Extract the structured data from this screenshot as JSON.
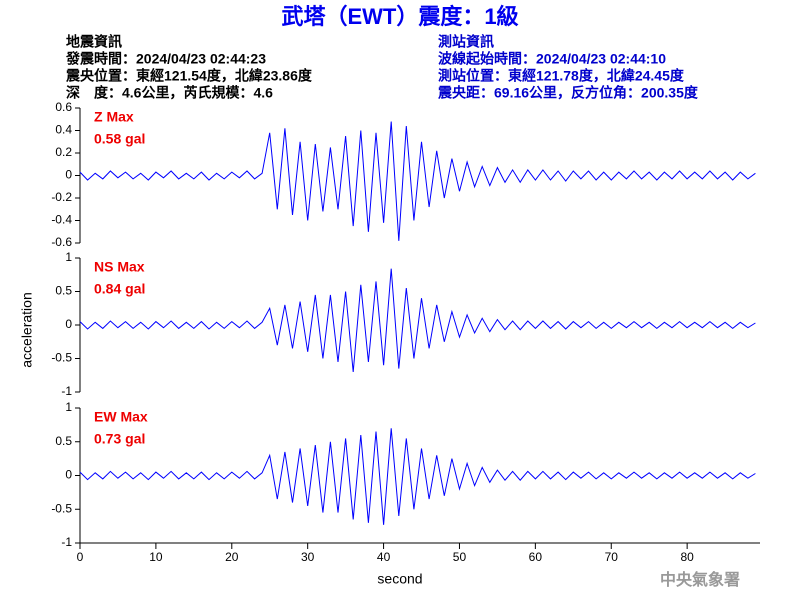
{
  "title": "武塔（EWT）震度：1級",
  "info_left": [
    "地震資訊",
    "發震時間：2024/04/23 02:44:23",
    "震央位置：東經121.54度，北緯23.86度",
    "深　度：4.6公里，芮氏規模：4.6"
  ],
  "info_right": [
    "測站資訊",
    "波線起始時間：2024/04/23 02:44:10",
    "測站位置：東經121.78度，北緯24.45度",
    "震央距：69.16公里，反方位角：200.35度"
  ],
  "ylabel": "acceleration",
  "footer": "中央氣象署",
  "chart_data": [
    {
      "type": "line",
      "annotations": [
        "Z Max",
        "0.58 gal"
      ],
      "color": "#0000ff",
      "x": [
        0,
        1,
        2,
        3,
        4,
        5,
        6,
        7,
        8,
        9,
        10,
        11,
        12,
        13,
        14,
        15,
        16,
        17,
        18,
        19,
        20,
        21,
        22,
        23,
        24,
        25,
        26,
        27,
        28,
        29,
        30,
        31,
        32,
        33,
        34,
        35,
        36,
        37,
        38,
        39,
        40,
        41,
        42,
        43,
        44,
        45,
        46,
        47,
        48,
        49,
        50,
        51,
        52,
        53,
        54,
        55,
        56,
        57,
        58,
        59,
        60,
        61,
        62,
        63,
        64,
        65,
        66,
        67,
        68,
        69,
        70,
        71,
        72,
        73,
        74,
        75,
        76,
        77,
        78,
        79,
        80,
        81,
        82,
        83,
        84,
        85,
        86,
        87,
        88,
        89
      ],
      "values": [
        0.03,
        -0.04,
        0.02,
        -0.03,
        0.04,
        -0.02,
        0.03,
        -0.03,
        0.02,
        -0.04,
        0.03,
        -0.02,
        0.04,
        -0.03,
        0.02,
        -0.03,
        0.03,
        -0.04,
        0.02,
        -0.03,
        0.03,
        -0.02,
        0.04,
        -0.03,
        0.02,
        0.38,
        -0.3,
        0.42,
        -0.35,
        0.3,
        -0.4,
        0.28,
        -0.32,
        0.25,
        -0.3,
        0.35,
        -0.45,
        0.4,
        -0.5,
        0.38,
        -0.42,
        0.48,
        -0.58,
        0.44,
        -0.4,
        0.3,
        -0.28,
        0.22,
        -0.2,
        0.15,
        -0.14,
        0.12,
        -0.1,
        0.08,
        -0.09,
        0.07,
        -0.06,
        0.05,
        -0.06,
        0.05,
        -0.04,
        0.05,
        -0.04,
        0.04,
        -0.05,
        0.04,
        -0.03,
        0.04,
        -0.04,
        0.03,
        -0.04,
        0.03,
        -0.03,
        0.04,
        -0.03,
        0.03,
        -0.04,
        0.03,
        -0.03,
        0.04,
        -0.03,
        0.03,
        -0.03,
        0.04,
        -0.03,
        0.03,
        -0.04,
        0.03,
        -0.03,
        0.02
      ],
      "xlim": [
        0,
        89.6
      ],
      "ylim": [
        -0.6,
        0.6
      ],
      "yticks": [
        0.6,
        0.4,
        0.2,
        0,
        -0.2,
        -0.4,
        -0.6
      ]
    },
    {
      "type": "line",
      "annotations": [
        "NS Max",
        "0.84 gal"
      ],
      "color": "#0000ff",
      "x": [
        0,
        1,
        2,
        3,
        4,
        5,
        6,
        7,
        8,
        9,
        10,
        11,
        12,
        13,
        14,
        15,
        16,
        17,
        18,
        19,
        20,
        21,
        22,
        23,
        24,
        25,
        26,
        27,
        28,
        29,
        30,
        31,
        32,
        33,
        34,
        35,
        36,
        37,
        38,
        39,
        40,
        41,
        42,
        43,
        44,
        45,
        46,
        47,
        48,
        49,
        50,
        51,
        52,
        53,
        54,
        55,
        56,
        57,
        58,
        59,
        60,
        61,
        62,
        63,
        64,
        65,
        66,
        67,
        68,
        69,
        70,
        71,
        72,
        73,
        74,
        75,
        76,
        77,
        78,
        79,
        80,
        81,
        82,
        83,
        84,
        85,
        86,
        87,
        88,
        89
      ],
      "values": [
        0.05,
        -0.06,
        0.04,
        -0.05,
        0.06,
        -0.04,
        0.05,
        -0.05,
        0.04,
        -0.06,
        0.05,
        -0.04,
        0.06,
        -0.05,
        0.04,
        -0.05,
        0.05,
        -0.06,
        0.04,
        -0.05,
        0.05,
        -0.04,
        0.06,
        -0.05,
        0.04,
        0.25,
        -0.3,
        0.3,
        -0.35,
        0.35,
        -0.4,
        0.45,
        -0.5,
        0.45,
        -0.55,
        0.5,
        -0.7,
        0.6,
        -0.55,
        0.65,
        -0.6,
        0.84,
        -0.65,
        0.55,
        -0.5,
        0.4,
        -0.35,
        0.3,
        -0.25,
        0.2,
        -0.18,
        0.15,
        -0.12,
        0.1,
        -0.1,
        0.08,
        -0.07,
        0.06,
        -0.07,
        0.06,
        -0.05,
        0.06,
        -0.05,
        0.05,
        -0.06,
        0.05,
        -0.04,
        0.05,
        -0.05,
        0.04,
        -0.05,
        0.04,
        -0.04,
        0.05,
        -0.04,
        0.04,
        -0.05,
        0.04,
        -0.04,
        0.05,
        -0.04,
        0.04,
        -0.04,
        0.05,
        -0.04,
        0.04,
        -0.05,
        0.04,
        -0.04,
        0.03
      ],
      "xlim": [
        0,
        89.6
      ],
      "ylim": [
        -1,
        1
      ],
      "yticks": [
        1,
        0.5,
        0,
        -0.5,
        -1
      ]
    },
    {
      "type": "line",
      "annotations": [
        "EW Max",
        "0.73 gal"
      ],
      "color": "#0000ff",
      "x": [
        0,
        1,
        2,
        3,
        4,
        5,
        6,
        7,
        8,
        9,
        10,
        11,
        12,
        13,
        14,
        15,
        16,
        17,
        18,
        19,
        20,
        21,
        22,
        23,
        24,
        25,
        26,
        27,
        28,
        29,
        30,
        31,
        32,
        33,
        34,
        35,
        36,
        37,
        38,
        39,
        40,
        41,
        42,
        43,
        44,
        45,
        46,
        47,
        48,
        49,
        50,
        51,
        52,
        53,
        54,
        55,
        56,
        57,
        58,
        59,
        60,
        61,
        62,
        63,
        64,
        65,
        66,
        67,
        68,
        69,
        70,
        71,
        72,
        73,
        74,
        75,
        76,
        77,
        78,
        79,
        80,
        81,
        82,
        83,
        84,
        85,
        86,
        87,
        88,
        89
      ],
      "values": [
        0.05,
        -0.06,
        0.04,
        -0.05,
        0.06,
        -0.04,
        0.05,
        -0.05,
        0.04,
        -0.06,
        0.05,
        -0.04,
        0.06,
        -0.05,
        0.04,
        -0.05,
        0.05,
        -0.06,
        0.04,
        -0.05,
        0.05,
        -0.04,
        0.06,
        -0.05,
        0.04,
        0.3,
        -0.35,
        0.35,
        -0.4,
        0.4,
        -0.45,
        0.45,
        -0.55,
        0.5,
        -0.55,
        0.55,
        -0.65,
        0.6,
        -0.7,
        0.65,
        -0.73,
        0.7,
        -0.6,
        0.55,
        -0.5,
        0.4,
        -0.35,
        0.3,
        -0.3,
        0.25,
        -0.2,
        0.18,
        -0.15,
        0.12,
        -0.1,
        0.08,
        -0.07,
        0.06,
        -0.07,
        0.06,
        -0.05,
        0.06,
        -0.05,
        0.05,
        -0.06,
        0.05,
        -0.04,
        0.05,
        -0.05,
        0.04,
        -0.05,
        0.04,
        -0.04,
        0.05,
        -0.04,
        0.04,
        -0.05,
        0.04,
        -0.04,
        0.05,
        -0.04,
        0.04,
        -0.04,
        0.05,
        -0.04,
        0.04,
        -0.05,
        0.04,
        -0.04,
        0.03
      ],
      "xlim": [
        0,
        89.6
      ],
      "ylim": [
        -1,
        1
      ],
      "yticks": [
        1,
        0.5,
        0,
        -0.5,
        -1
      ],
      "xticks": [
        0,
        10,
        20,
        30,
        40,
        50,
        60,
        70,
        80
      ],
      "xlabel": "second"
    }
  ]
}
